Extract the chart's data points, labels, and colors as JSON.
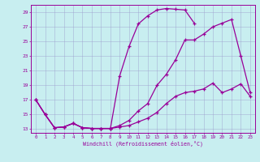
{
  "xlabel": "Windchill (Refroidissement éolien,°C)",
  "background_color": "#c8eef0",
  "line_color": "#990099",
  "xlim": [
    -0.5,
    23.5
  ],
  "ylim": [
    12.5,
    30.0
  ],
  "xticks": [
    0,
    1,
    2,
    3,
    4,
    5,
    6,
    7,
    8,
    9,
    10,
    11,
    12,
    13,
    14,
    15,
    16,
    17,
    18,
    19,
    20,
    21,
    22,
    23
  ],
  "yticks": [
    13,
    15,
    17,
    19,
    21,
    23,
    25,
    27,
    29
  ],
  "grid_color": "#9999cc",
  "line1_x": [
    0,
    1,
    2,
    3,
    4,
    5,
    6,
    7,
    8,
    9,
    10,
    11,
    12,
    13,
    14,
    15,
    16,
    17
  ],
  "line1_y": [
    17.0,
    15.0,
    13.2,
    13.3,
    13.8,
    13.2,
    13.1,
    13.1,
    13.1,
    20.3,
    24.3,
    27.4,
    28.5,
    29.3,
    29.5,
    29.4,
    29.3,
    27.5
  ],
  "line2_x": [
    0,
    1,
    2,
    3,
    4,
    5,
    6,
    7,
    8,
    9,
    10,
    11,
    12,
    13,
    14,
    15,
    16,
    17,
    18,
    19,
    20,
    21,
    22,
    23
  ],
  "line2_y": [
    17.0,
    15.0,
    13.2,
    13.3,
    13.8,
    13.2,
    13.1,
    13.1,
    13.1,
    13.5,
    14.2,
    15.5,
    16.5,
    19.0,
    20.5,
    22.5,
    25.2,
    25.2,
    26.0,
    27.0,
    27.5,
    28.0,
    23.0,
    18.0
  ],
  "line3_x": [
    0,
    1,
    2,
    3,
    4,
    5,
    6,
    7,
    8,
    9,
    10,
    11,
    12,
    13,
    14,
    15,
    16,
    17,
    18,
    19,
    20,
    21,
    22,
    23
  ],
  "line3_y": [
    17.0,
    15.0,
    13.2,
    13.3,
    13.8,
    13.2,
    13.1,
    13.1,
    13.1,
    13.3,
    13.5,
    14.0,
    14.5,
    15.3,
    16.5,
    17.5,
    18.0,
    18.2,
    18.5,
    19.3,
    18.0,
    18.5,
    19.2,
    17.5
  ]
}
